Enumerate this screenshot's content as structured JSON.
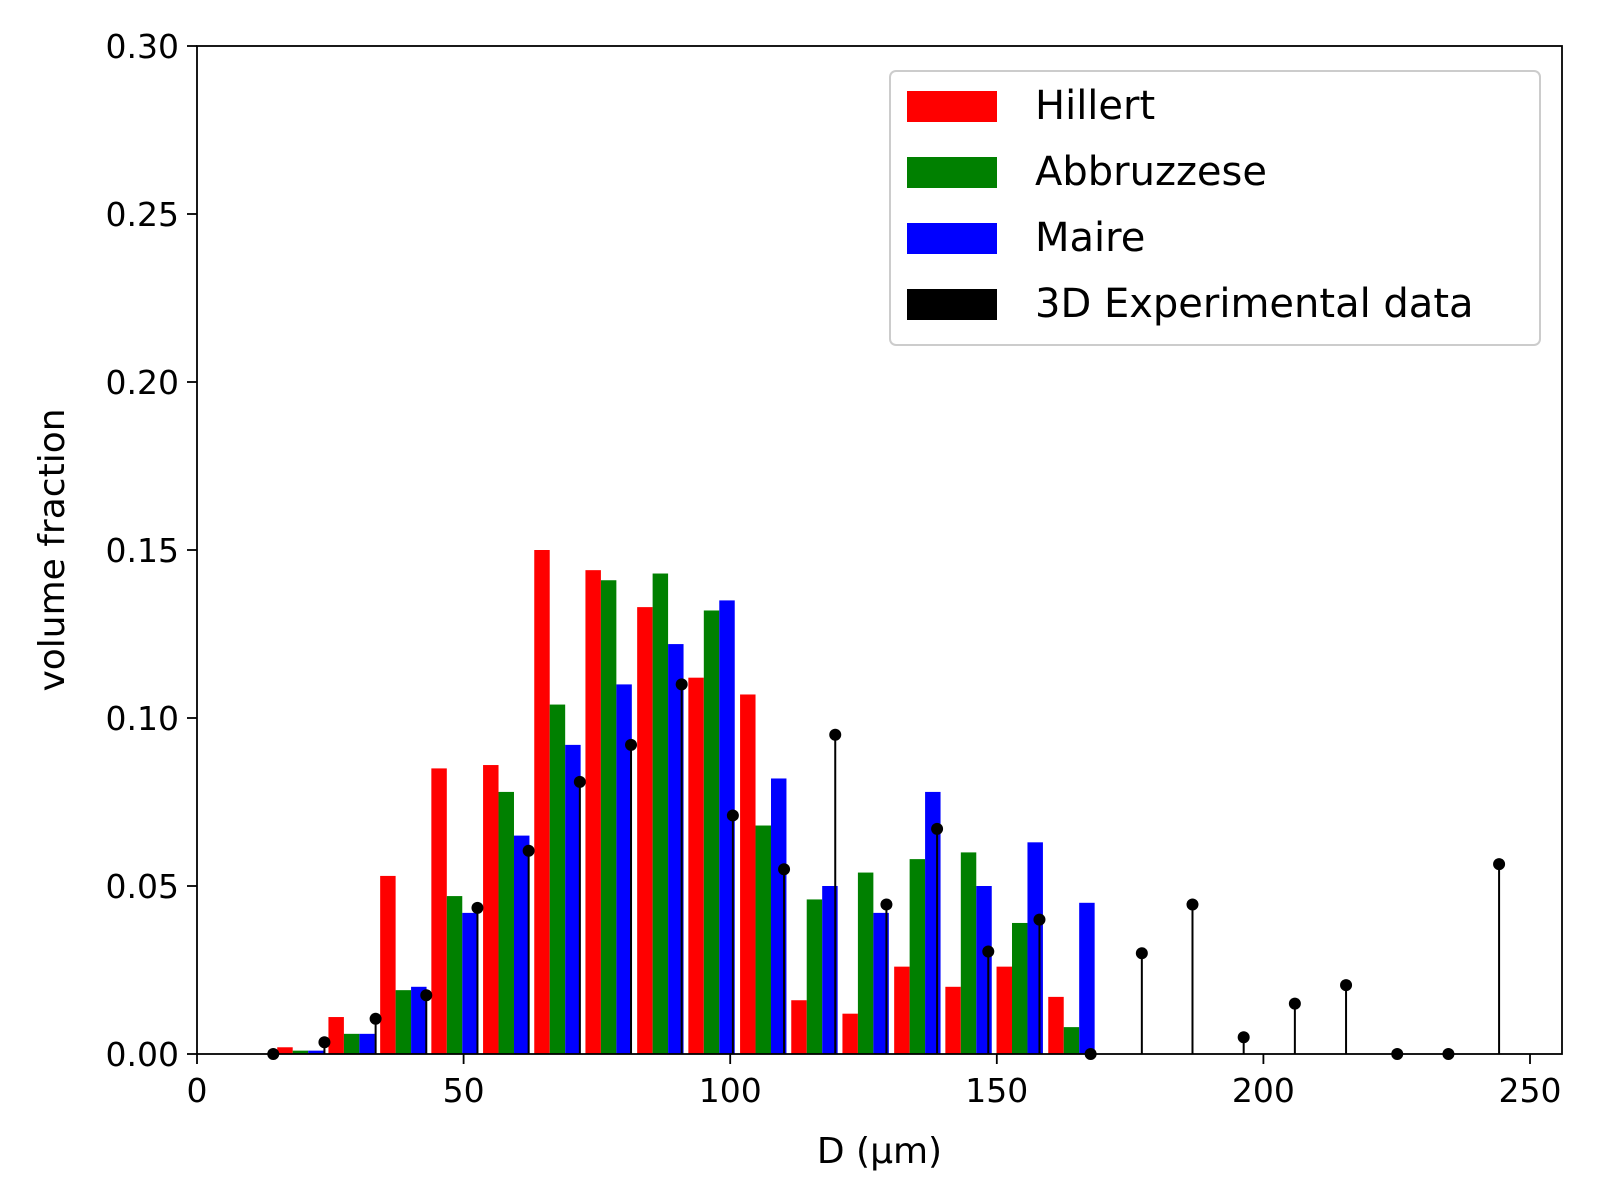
{
  "chart_data": {
    "type": "bar",
    "xlabel": "D (μm)",
    "ylabel": "volume fraction",
    "xlim": [
      0,
      256
    ],
    "ylim": [
      0,
      0.3
    ],
    "xticks": [
      0,
      50,
      100,
      150,
      200,
      250
    ],
    "yticks": [
      "0.00",
      "0.05",
      "0.10",
      "0.15",
      "0.20",
      "0.25",
      "0.30"
    ],
    "legend_position": "top-right",
    "grid": false,
    "bar_width": 2.9,
    "series": [
      {
        "name": "Hillert",
        "color": "#ff0000",
        "x": [
          16.5,
          26.1,
          35.8,
          45.4,
          55.1,
          64.7,
          74.3,
          84.0,
          93.6,
          103.3,
          112.9,
          122.5,
          132.2,
          141.8,
          151.4,
          161.1
        ],
        "values": [
          0.002,
          0.011,
          0.053,
          0.085,
          0.086,
          0.15,
          0.144,
          0.133,
          0.112,
          0.107,
          0.016,
          0.012,
          0.026,
          0.02,
          0.026,
          0.017
        ]
      },
      {
        "name": "Abbruzzese",
        "color": "#008000",
        "x": [
          19.4,
          29.0,
          38.7,
          48.3,
          58.0,
          67.6,
          77.2,
          86.9,
          96.5,
          106.2,
          115.8,
          125.4,
          135.1,
          144.7,
          154.3,
          164.0
        ],
        "values": [
          0.001,
          0.006,
          0.019,
          0.047,
          0.078,
          0.104,
          0.141,
          0.143,
          0.132,
          0.068,
          0.046,
          0.054,
          0.058,
          0.06,
          0.039,
          0.008
        ]
      },
      {
        "name": "Maire",
        "color": "#0000ff",
        "x": [
          22.3,
          31.9,
          41.6,
          51.2,
          60.9,
          70.5,
          80.1,
          89.8,
          99.4,
          109.1,
          118.7,
          128.3,
          138.0,
          147.6,
          157.2,
          166.9
        ],
        "values": [
          0.001,
          0.006,
          0.02,
          0.042,
          0.065,
          0.092,
          0.11,
          0.122,
          0.135,
          0.082,
          0.05,
          0.042,
          0.078,
          0.05,
          0.063,
          0.045
        ]
      },
      {
        "name": "3D Experimental data",
        "color": "#000000",
        "style": "stem",
        "x": [
          14.3,
          23.9,
          33.5,
          43.0,
          52.6,
          62.2,
          71.8,
          81.4,
          90.9,
          100.5,
          110.1,
          119.7,
          129.3,
          138.8,
          148.4,
          158.0,
          167.6,
          177.2,
          186.7,
          196.3,
          205.9,
          215.5,
          225.1,
          234.7,
          244.2
        ],
        "values": [
          0.0,
          0.0035,
          0.0105,
          0.0175,
          0.0435,
          0.0605,
          0.081,
          0.092,
          0.11,
          0.071,
          0.055,
          0.095,
          0.0445,
          0.067,
          0.0305,
          0.04,
          0.0,
          0.03,
          0.0445,
          0.005,
          0.015,
          0.0205,
          0.0,
          0.0,
          0.0565
        ]
      }
    ]
  }
}
